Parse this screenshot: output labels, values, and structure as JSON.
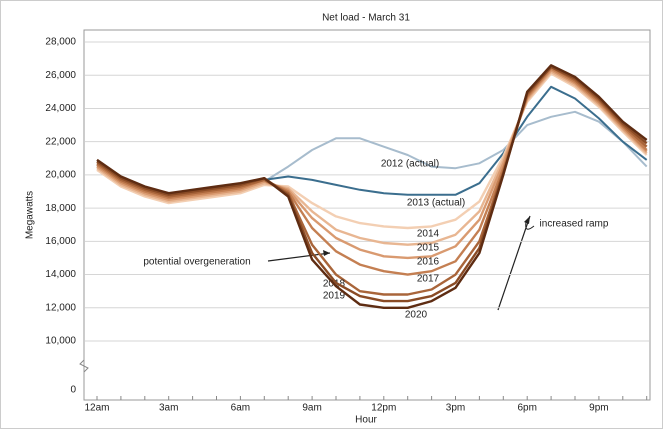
{
  "chart_data": {
    "type": "line",
    "title": "Net load - March 31",
    "x_label": "Hour",
    "y_label": "Megawatts",
    "categories": [
      "12am",
      null,
      null,
      "3am",
      null,
      null,
      "6am",
      null,
      null,
      "9am",
      null,
      null,
      "12pm",
      null,
      null,
      "3pm",
      null,
      null,
      "6pm",
      null,
      null,
      "9pm",
      null,
      null
    ],
    "ylim": [
      0,
      28000
    ],
    "y_break": [
      0,
      10000
    ],
    "yticks": [
      {
        "value": 0,
        "label": "0"
      },
      {
        "value": 10000,
        "label": "10,000"
      },
      {
        "value": 12000,
        "label": "12,000"
      },
      {
        "value": 14000,
        "label": "14,000"
      },
      {
        "value": 16000,
        "label": "16,000"
      },
      {
        "value": 18000,
        "label": "18,000"
      },
      {
        "value": 20000,
        "label": "20,000"
      },
      {
        "value": 22000,
        "label": "22,000"
      },
      {
        "value": 24000,
        "label": "24,000"
      },
      {
        "value": 26000,
        "label": "26,000"
      },
      {
        "value": 28000,
        "label": "28,000"
      }
    ],
    "grid": true,
    "series": [
      {
        "name": "2012 (actual)",
        "color": "#a7bccd",
        "values": [
          20500,
          19500,
          18900,
          18500,
          18700,
          18900,
          19100,
          19600,
          20500,
          21500,
          22200,
          22200,
          21700,
          21200,
          20500,
          20400,
          20700,
          21500,
          23000,
          23500,
          23800,
          23200,
          22000,
          20500
        ]
      },
      {
        "name": "2013 (actual)",
        "color": "#3b6e8e",
        "values": [
          20600,
          19700,
          19100,
          18800,
          19000,
          19200,
          19400,
          19700,
          19900,
          19700,
          19400,
          19100,
          18900,
          18800,
          18800,
          18800,
          19500,
          21300,
          23500,
          25300,
          24600,
          23400,
          22000,
          20900
        ]
      },
      {
        "name": "2014",
        "color": "#f3cfb3",
        "values": [
          20300,
          19300,
          18700,
          18300,
          18500,
          18700,
          18900,
          19400,
          19300,
          18300,
          17500,
          17100,
          16900,
          16800,
          16900,
          17300,
          18400,
          21100,
          24400,
          26100,
          25300,
          24100,
          22600,
          21200
        ]
      },
      {
        "name": "2015",
        "color": "#e8b692",
        "values": [
          20400,
          19400,
          18800,
          18400,
          18600,
          18800,
          19000,
          19500,
          19200,
          17800,
          16700,
          16200,
          15900,
          15800,
          15900,
          16400,
          17800,
          20900,
          24500,
          26200,
          25400,
          24200,
          22700,
          21300
        ]
      },
      {
        "name": "2016",
        "color": "#d99a70",
        "values": [
          20500,
          19500,
          18900,
          18500,
          18700,
          18900,
          19100,
          19600,
          19100,
          17400,
          16200,
          15500,
          15100,
          15000,
          15100,
          15700,
          17300,
          20700,
          24600,
          26300,
          25500,
          24300,
          22800,
          21400
        ]
      },
      {
        "name": "2017",
        "color": "#c47f52",
        "values": [
          20600,
          19600,
          19000,
          18600,
          18800,
          19000,
          19200,
          19700,
          19000,
          16800,
          15400,
          14600,
          14200,
          14000,
          14200,
          14800,
          16700,
          20400,
          24700,
          26400,
          25600,
          24400,
          22900,
          21500
        ]
      },
      {
        "name": "2018",
        "color": "#a9653a",
        "values": [
          20700,
          19700,
          19100,
          18700,
          18900,
          19100,
          19300,
          19700,
          18900,
          15800,
          14000,
          13000,
          12800,
          12800,
          13100,
          14000,
          16000,
          20200,
          24800,
          26500,
          25700,
          24500,
          23000,
          21700
        ]
      },
      {
        "name": "2019",
        "color": "#8a4b25",
        "values": [
          20800,
          19800,
          19200,
          18800,
          19000,
          19200,
          19400,
          19800,
          18800,
          15300,
          13500,
          12700,
          12400,
          12400,
          12700,
          13500,
          15600,
          20100,
          24900,
          26500,
          25800,
          24600,
          23100,
          21900
        ]
      },
      {
        "name": "2020",
        "color": "#5e2c12",
        "values": [
          20900,
          19900,
          19300,
          18900,
          19100,
          19300,
          19500,
          19800,
          18700,
          14900,
          13300,
          12200,
          12000,
          12000,
          12400,
          13200,
          15300,
          20000,
          25000,
          26600,
          25900,
          24700,
          23200,
          22100
        ]
      }
    ],
    "annotations": [
      "potential overgeneration",
      "increased ramp"
    ]
  }
}
